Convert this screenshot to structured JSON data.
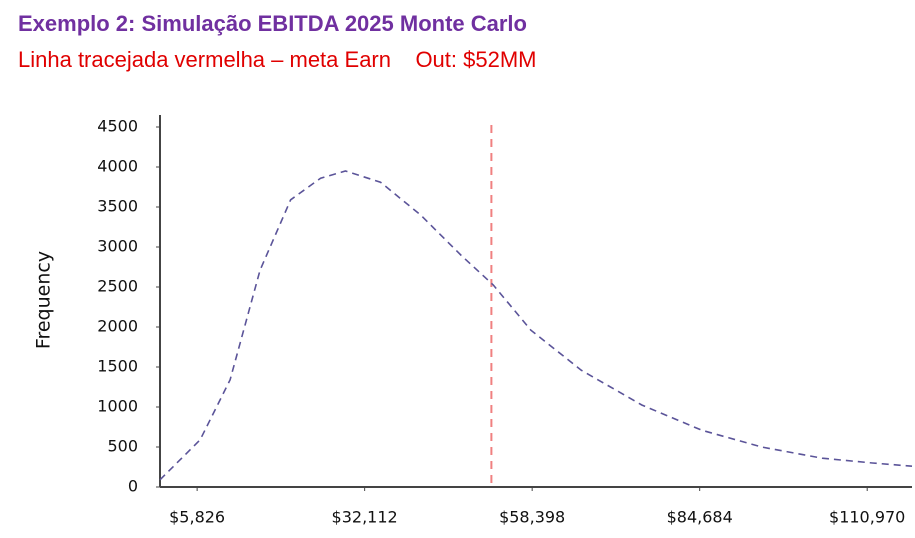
{
  "chart_data": {
    "type": "line",
    "title": "Exemplo 2: Simulação EBITDA 2025 Monte Carlo",
    "subtitle": "Linha tracejada vermelha – meta Earn    Out: $52MM",
    "ylabel": "Frequency",
    "x": [
      0,
      6300,
      11000,
      15700,
      20500,
      25200,
      29100,
      34600,
      40900,
      47200,
      52300,
      58200,
      66100,
      75600,
      85000,
      94400,
      103900,
      111800,
      118000
    ],
    "values": [
      90,
      590,
      1340,
      2710,
      3590,
      3860,
      3950,
      3810,
      3400,
      2900,
      2525,
      1960,
      1460,
      1025,
      710,
      500,
      360,
      300,
      260
    ],
    "color": "#5b5499",
    "target_line": {
      "value": 52000,
      "color": "#f08080"
    },
    "xlim": [
      0,
      118000
    ],
    "xticks": [
      {
        "value": 5826,
        "label": "$5,826"
      },
      {
        "value": 32112,
        "label": "$32,112"
      },
      {
        "value": 58398,
        "label": "$58,398"
      },
      {
        "value": 84684,
        "label": "$84,684"
      },
      {
        "value": 110970,
        "label": "$110,970"
      }
    ],
    "ylim": [
      0,
      4500
    ],
    "yticks": [
      0,
      500,
      1000,
      1500,
      2000,
      2500,
      3000,
      3500,
      4000,
      4500
    ]
  }
}
